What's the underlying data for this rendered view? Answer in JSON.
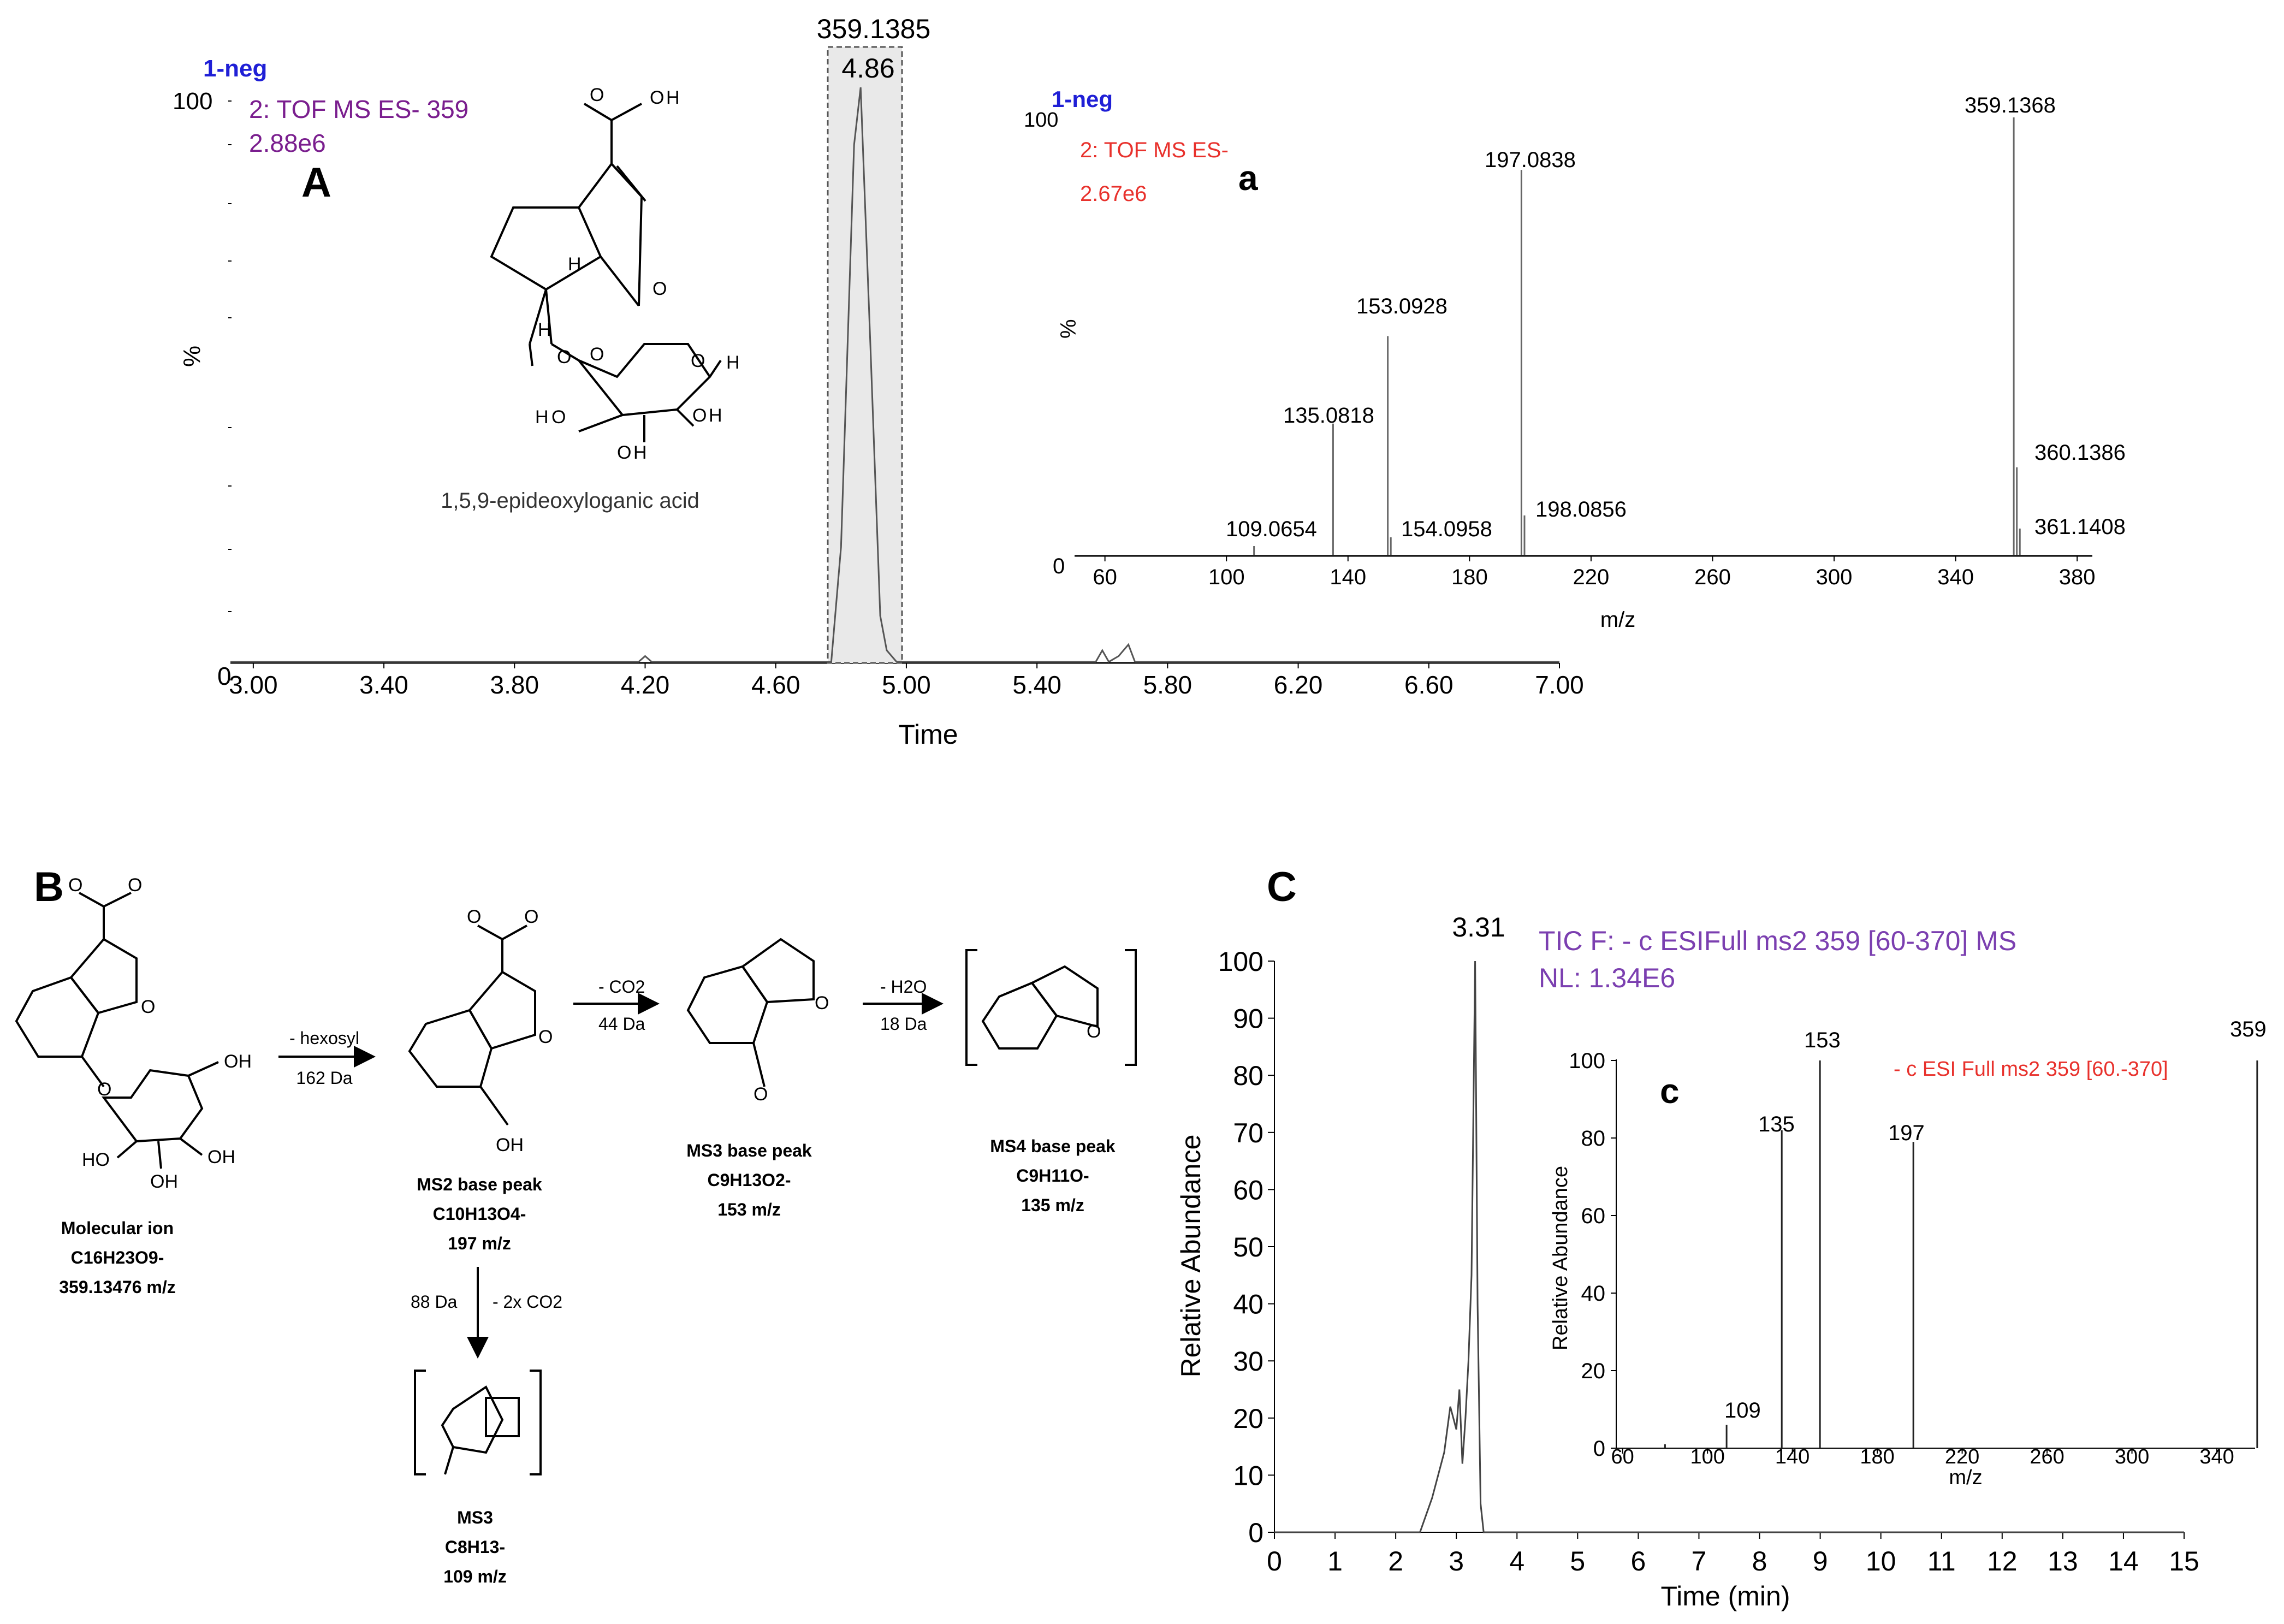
{
  "panel_letters": {
    "A": "A",
    "a": "a",
    "B": "B",
    "C": "C",
    "c": "c"
  },
  "panelA": {
    "trace_label": "1-neg",
    "channel": "2: TOF MS ES- 359",
    "intensity": "2.88e6",
    "y_top": "100",
    "y_bottom": "0",
    "y_unit": "%",
    "x_title": "Time",
    "peak_label_mass": "359.1385",
    "peak_label_rt": "4.86",
    "compound_name": "1,5,9-epideoxyloganic acid"
  },
  "panelInsetA": {
    "trace_label": "1-neg",
    "channel": "2: TOF MS ES-",
    "intensity": "2.67e6",
    "y_top": "100",
    "y_bottom": "0",
    "y_unit": "%",
    "x_title": "m/z",
    "peak_labels": [
      "359.1368",
      "197.0838",
      "153.0928",
      "135.0818",
      "109.0654",
      "154.0958",
      "198.0856",
      "360.1386",
      "361.1408"
    ]
  },
  "panelB": {
    "mol_ion": {
      "line1": "Molecular ion",
      "line2": "C16H23O9-",
      "line3": "359.13476 m/z"
    },
    "ms2": {
      "line1": "MS2 base peak",
      "line2": "C10H13O4-",
      "line3": "197 m/z"
    },
    "ms3a": {
      "line1": "MS3 base peak",
      "line2": "C9H13O2-",
      "line3": "153 m/z"
    },
    "ms4": {
      "line1": "MS4 base peak",
      "line2": "C9H11O-",
      "line3": "135 m/z"
    },
    "ms3b": {
      "line1": "MS3",
      "line2": "C8H13-",
      "line3": "109 m/z"
    },
    "arrow1": {
      "top": "- hexosyl",
      "bottom": "162 Da"
    },
    "arrow2": {
      "top": "- CO2",
      "bottom": "44 Da"
    },
    "arrow3": {
      "top": "- H2O",
      "bottom": "18 Da"
    },
    "arrow4": {
      "left": "88 Da",
      "right": "- 2x CO2"
    }
  },
  "panelC": {
    "tic_line1": "TIC F: - c ESIFull ms2   359 [60-370]  MS",
    "tic_line2": "NL:  1.34E6",
    "peak_label": "3.31",
    "y_title": "Relative Abundance",
    "x_title": "Time (min)"
  },
  "panelInsetC": {
    "scan_label": "- c ESI Full ms2 359 [60.-370]",
    "y_title": "Relative Abundance",
    "x_title": "m/z",
    "peak_labels": [
      "359",
      "153",
      "135",
      "197",
      "109"
    ]
  },
  "colors": {
    "blue": "#1f1fd6",
    "purple": "#7a1e8e",
    "red": "#e8312c",
    "tic_purple": "#7b3fb0",
    "axis": "#000000",
    "bar": "#666666"
  },
  "chart_data": [
    {
      "type": "line",
      "title": "",
      "xlabel": "Time",
      "ylabel": "%",
      "xlim": [
        2.93,
        7.0
      ],
      "ylim": [
        0,
        100
      ],
      "xticks": [
        "3.00",
        "3.40",
        "3.80",
        "4.20",
        "4.60",
        "5.00",
        "5.40",
        "5.80",
        "6.20",
        "6.60",
        "7.00"
      ],
      "x": [
        2.93,
        4.18,
        4.2,
        4.22,
        4.77,
        4.8,
        4.84,
        4.86,
        4.89,
        4.92,
        4.94,
        4.97,
        5.58,
        5.6,
        5.62,
        5.65,
        5.68,
        5.7,
        7.0
      ],
      "y": [
        0,
        0,
        1,
        0,
        0,
        20,
        90,
        100,
        55,
        8,
        2,
        0,
        0,
        2,
        0,
        1,
        3,
        0,
        0
      ],
      "annotations": [
        {
          "x": 4.86,
          "text": "4.86"
        },
        {
          "x": 4.86,
          "text": "359.1385"
        }
      ]
    },
    {
      "type": "bar",
      "title": "",
      "xlabel": "m/z",
      "ylabel": "%",
      "xlim": [
        50,
        385
      ],
      "ylim": [
        0,
        100
      ],
      "xticks": [
        "60",
        "100",
        "140",
        "180",
        "220",
        "260",
        "300",
        "340",
        "380"
      ],
      "x": [
        109.0654,
        135.0818,
        153.0928,
        154.0958,
        197.0838,
        198.0856,
        359.1368,
        360.1386,
        361.1408
      ],
      "values": [
        2,
        30,
        50,
        4,
        88,
        9,
        100,
        20,
        6
      ]
    },
    {
      "type": "line",
      "title": "",
      "xlabel": "Time (min)",
      "ylabel": "Relative Abundance",
      "xlim": [
        0,
        15
      ],
      "ylim": [
        0,
        100
      ],
      "xticks": [
        "0",
        "1",
        "2",
        "3",
        "4",
        "5",
        "6",
        "7",
        "8",
        "9",
        "10",
        "11",
        "12",
        "13",
        "14",
        "15"
      ],
      "yticks": [
        "0",
        "10",
        "20",
        "30",
        "40",
        "50",
        "60",
        "70",
        "80",
        "90",
        "100"
      ],
      "x": [
        0,
        2.4,
        2.5,
        2.6,
        2.7,
        2.8,
        2.9,
        3.0,
        3.05,
        3.1,
        3.15,
        3.2,
        3.25,
        3.31,
        3.35,
        3.4,
        3.45,
        15
      ],
      "y": [
        0,
        0,
        3,
        6,
        10,
        14,
        22,
        18,
        25,
        12,
        20,
        30,
        45,
        100,
        40,
        5,
        0,
        0
      ],
      "annotations": [
        {
          "x": 3.31,
          "text": "3.31"
        }
      ]
    },
    {
      "type": "bar",
      "title": "",
      "xlabel": "m/z",
      "ylabel": "Relative Abundance",
      "xlim": [
        57,
        358
      ],
      "ylim": [
        0,
        100
      ],
      "xticks": [
        "60",
        "100",
        "140",
        "180",
        "220",
        "260",
        "300",
        "340"
      ],
      "yticks": [
        "0",
        "20",
        "40",
        "60",
        "80",
        "100"
      ],
      "x": [
        80,
        109,
        135,
        153,
        197,
        359
      ],
      "values": [
        1,
        6,
        82,
        100,
        79,
        100
      ]
    }
  ]
}
